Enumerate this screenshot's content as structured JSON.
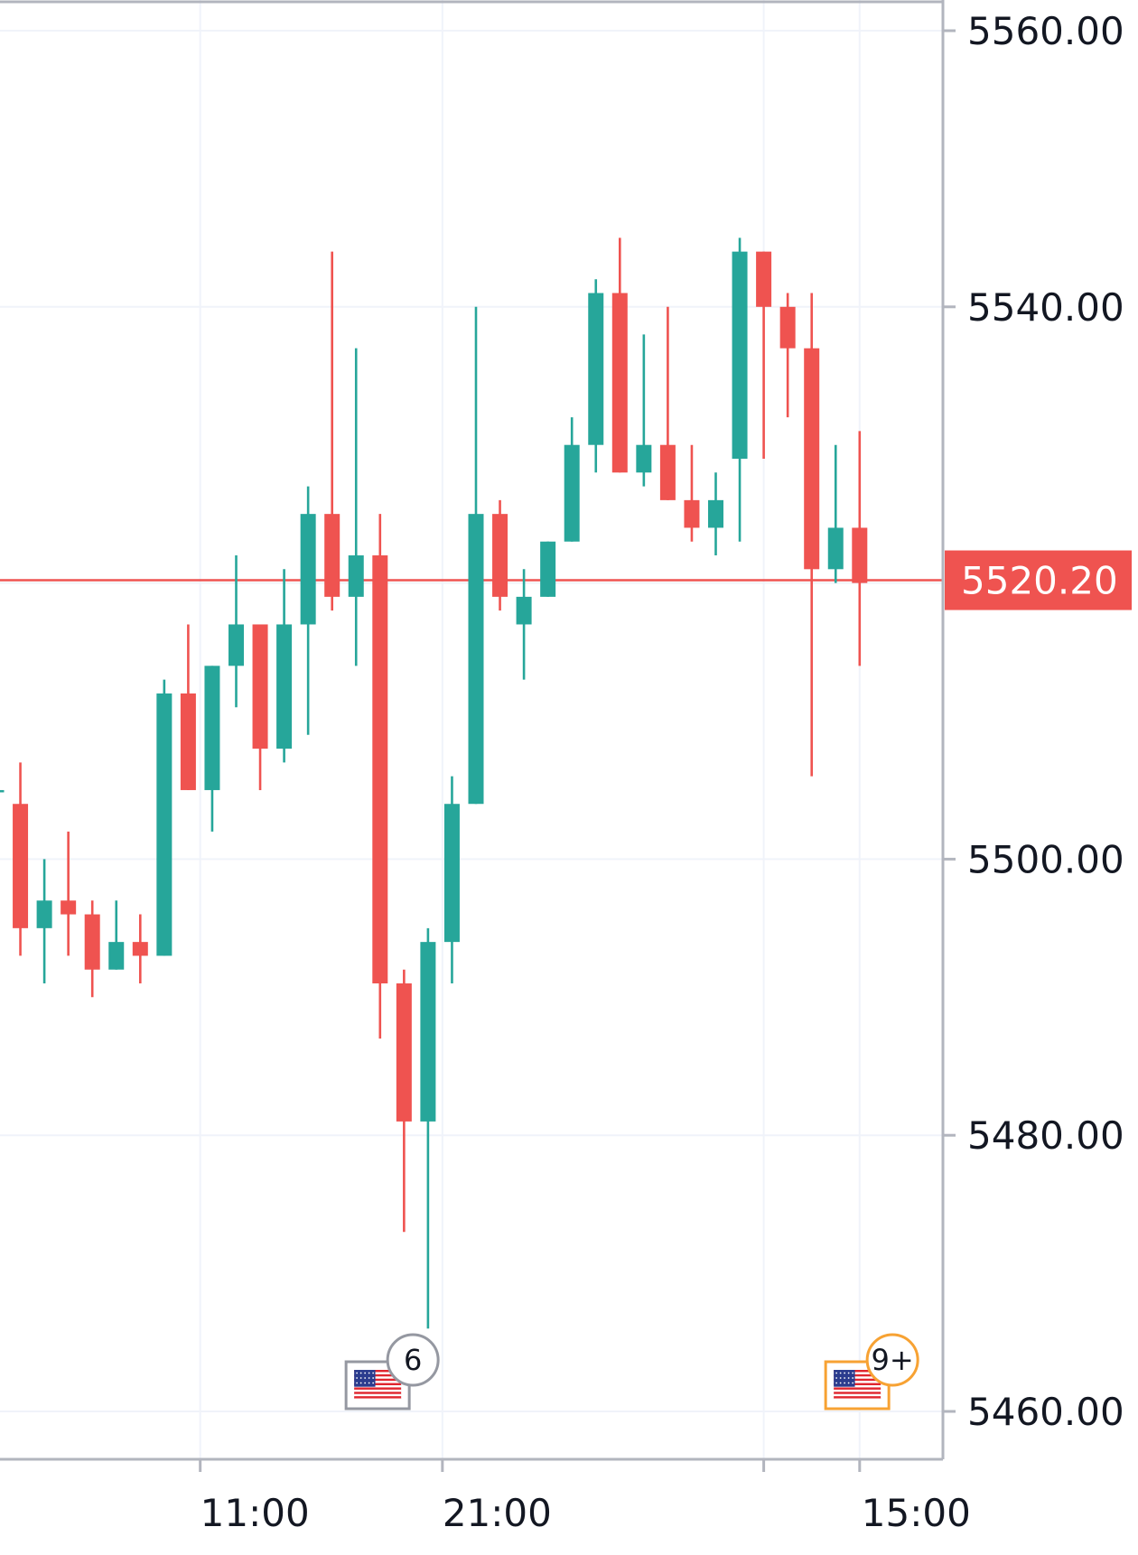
{
  "chart_data": {
    "type": "candlestick",
    "y_axis": {
      "ticks": [
        "5560.00",
        "5540.00",
        "5500.00",
        "5480.00",
        "5460.00"
      ],
      "tick_values": [
        5560,
        5540,
        5500,
        5480,
        5460
      ],
      "ylim": [
        5456,
        5562
      ],
      "position": "right"
    },
    "x_axis": {
      "ticks": [
        "11:00",
        "21:00",
        "15:00"
      ],
      "tick_candle_index": [
        8.5,
        18.6,
        36
      ]
    },
    "current_price": {
      "label": "5520.20",
      "value": 5520.2,
      "line_color": "#ef5350"
    },
    "colors": {
      "up": "#26a69a",
      "down": "#ef5350",
      "grid": "#f0f3fa",
      "axis": "#b2b5be",
      "text": "#131722"
    },
    "grid": true,
    "candles": [
      {
        "o": 5505,
        "h": 5507,
        "l": 5505,
        "c": 5505
      },
      {
        "o": 5504,
        "h": 5507,
        "l": 5493,
        "c": 5495
      },
      {
        "o": 5495,
        "h": 5500,
        "l": 5491,
        "c": 5497
      },
      {
        "o": 5497,
        "h": 5502,
        "l": 5493,
        "c": 5496
      },
      {
        "o": 5496,
        "h": 5497,
        "l": 5490,
        "c": 5492
      },
      {
        "o": 5492,
        "h": 5497,
        "l": 5492,
        "c": 5494
      },
      {
        "o": 5494,
        "h": 5496,
        "l": 5491,
        "c": 5493
      },
      {
        "o": 5493,
        "h": 5513,
        "l": 5493,
        "c": 5512
      },
      {
        "o": 5512,
        "h": 5517,
        "l": 5505,
        "c": 5505
      },
      {
        "o": 5505,
        "h": 5514,
        "l": 5502,
        "c": 5514
      },
      {
        "o": 5514,
        "h": 5522,
        "l": 5511,
        "c": 5517
      },
      {
        "o": 5517,
        "h": 5517,
        "l": 5505,
        "c": 5508
      },
      {
        "o": 5508,
        "h": 5521,
        "l": 5507,
        "c": 5517
      },
      {
        "o": 5517,
        "h": 5527,
        "l": 5509,
        "c": 5525
      },
      {
        "o": 5525,
        "h": 5544,
        "l": 5518,
        "c": 5519
      },
      {
        "o": 5519,
        "h": 5537,
        "l": 5514,
        "c": 5522
      },
      {
        "o": 5522,
        "h": 5525,
        "l": 5487,
        "c": 5491
      },
      {
        "o": 5491,
        "h": 5492,
        "l": 5473,
        "c": 5481
      },
      {
        "o": 5481,
        "h": 5495,
        "l": 5466,
        "c": 5494
      },
      {
        "o": 5494,
        "h": 5506,
        "l": 5491,
        "c": 5504
      },
      {
        "o": 5504,
        "h": 5540,
        "l": 5504,
        "c": 5525
      },
      {
        "o": 5525,
        "h": 5526,
        "l": 5518,
        "c": 5519
      },
      {
        "o": 5517,
        "h": 5521,
        "l": 5513,
        "c": 5519
      },
      {
        "o": 5519,
        "h": 5523,
        "l": 5519,
        "c": 5523
      },
      {
        "o": 5523,
        "h": 5532,
        "l": 5523,
        "c": 5530
      },
      {
        "o": 5530,
        "h": 5542,
        "l": 5528,
        "c": 5541
      },
      {
        "o": 5541,
        "h": 5545,
        "l": 5528,
        "c": 5528
      },
      {
        "o": 5528,
        "h": 5538,
        "l": 5527,
        "c": 5530
      },
      {
        "o": 5530,
        "h": 5540,
        "l": 5526,
        "c": 5526
      },
      {
        "o": 5526,
        "h": 5530,
        "l": 5523,
        "c": 5524
      },
      {
        "o": 5524,
        "h": 5528,
        "l": 5522,
        "c": 5526
      },
      {
        "o": 5529,
        "h": 5545,
        "l": 5523,
        "c": 5544
      },
      {
        "o": 5544,
        "h": 5544,
        "l": 5529,
        "c": 5540
      },
      {
        "o": 5540,
        "h": 5541,
        "l": 5532,
        "c": 5537
      },
      {
        "o": 5537,
        "h": 5541,
        "l": 5506,
        "c": 5521
      },
      {
        "o": 5521,
        "h": 5530,
        "l": 5520,
        "c": 5524
      },
      {
        "o": 5524,
        "h": 5531,
        "l": 5514,
        "c": 5520
      }
    ],
    "event_markers": [
      {
        "candle_index": 15.9,
        "badge": "6",
        "flag": "us-flag-icon",
        "border_color": "#9598a1"
      },
      {
        "candle_index": 35.9,
        "badge": "9+",
        "flag": "us-flag-icon",
        "border_color": "#f7a233"
      }
    ]
  }
}
